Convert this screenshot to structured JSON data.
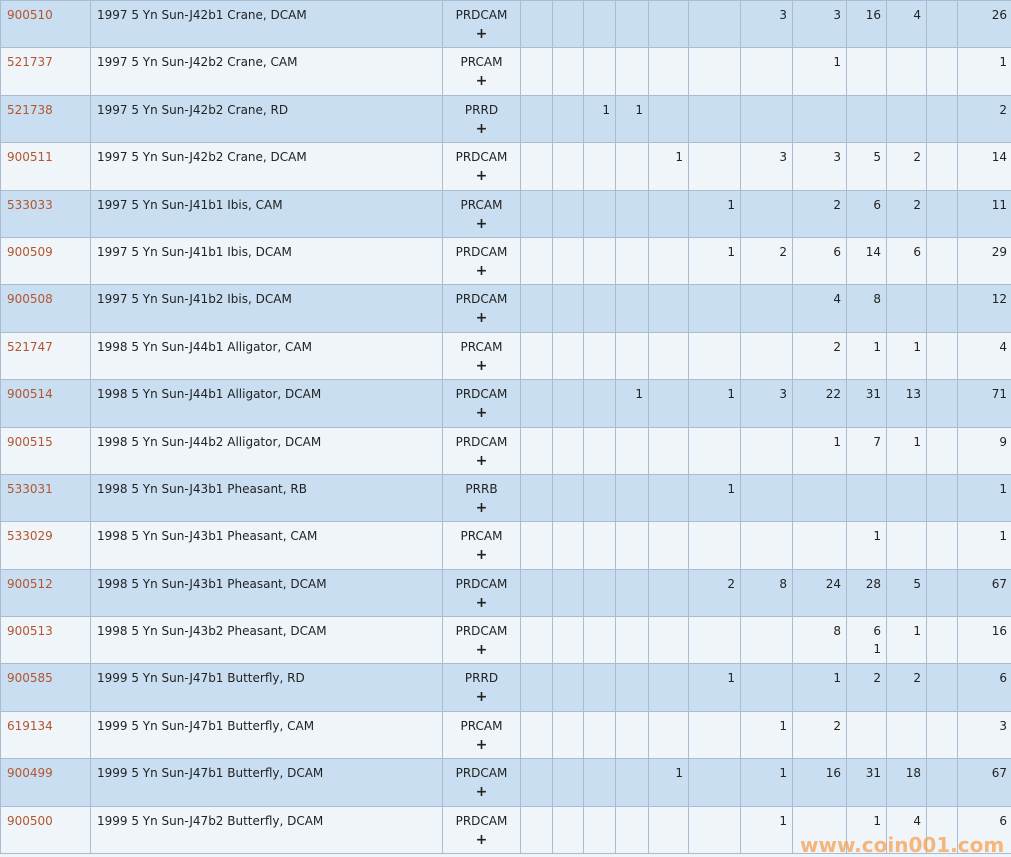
{
  "colors": {
    "row_odd": "#c9dff1",
    "row_even": "#f0f5fa",
    "link": "#b4552f",
    "border": "#aabdd0"
  },
  "plus_label": "+",
  "watermark": "www.coin001.com",
  "rows": [
    {
      "id": "900510",
      "desc": "1997 5 Yn Sun-J42b1 Crane, DCAM",
      "type": "PRDCAM",
      "cells": [
        "",
        "",
        "",
        "",
        "",
        "",
        "3",
        "3",
        "16",
        "4",
        "",
        "26"
      ]
    },
    {
      "id": "521737",
      "desc": "1997 5 Yn Sun-J42b2 Crane, CAM",
      "type": "PRCAM",
      "cells": [
        "",
        "",
        "",
        "",
        "",
        "",
        "",
        "1",
        "",
        "",
        "",
        "1"
      ]
    },
    {
      "id": "521738",
      "desc": "1997 5 Yn Sun-J42b2 Crane, RD",
      "type": "PRRD",
      "cells": [
        "",
        "",
        "1",
        "1",
        "",
        "",
        "",
        "",
        "",
        "",
        "",
        "2"
      ]
    },
    {
      "id": "900511",
      "desc": "1997 5 Yn Sun-J42b2 Crane, DCAM",
      "type": "PRDCAM",
      "cells": [
        "",
        "",
        "",
        "",
        "1",
        "",
        "3",
        "3",
        "5",
        "2",
        "",
        "14"
      ]
    },
    {
      "id": "533033",
      "desc": "1997 5 Yn Sun-J41b1 Ibis, CAM",
      "type": "PRCAM",
      "cells": [
        "",
        "",
        "",
        "",
        "",
        "1",
        "",
        "2",
        "6",
        "2",
        "",
        "11"
      ]
    },
    {
      "id": "900509",
      "desc": "1997 5 Yn Sun-J41b1 Ibis, DCAM",
      "type": "PRDCAM",
      "cells": [
        "",
        "",
        "",
        "",
        "",
        "1",
        "2",
        "6",
        "14",
        "6",
        "",
        "29"
      ]
    },
    {
      "id": "900508",
      "desc": "1997 5 Yn Sun-J41b2 Ibis, DCAM",
      "type": "PRDCAM",
      "cells": [
        "",
        "",
        "",
        "",
        "",
        "",
        "",
        "4",
        "8",
        "",
        "",
        "12"
      ]
    },
    {
      "id": "521747",
      "desc": "1998 5 Yn Sun-J44b1 Alligator, CAM",
      "type": "PRCAM",
      "cells": [
        "",
        "",
        "",
        "",
        "",
        "",
        "",
        "2",
        "1",
        "1",
        "",
        "4"
      ]
    },
    {
      "id": "900514",
      "desc": "1998 5 Yn Sun-J44b1 Alligator, DCAM",
      "type": "PRDCAM",
      "cells": [
        "",
        "",
        "",
        "1",
        "",
        "1",
        "3",
        "22",
        "31",
        "13",
        "",
        "71"
      ]
    },
    {
      "id": "900515",
      "desc": "1998 5 Yn Sun-J44b2 Alligator, DCAM",
      "type": "PRDCAM",
      "cells": [
        "",
        "",
        "",
        "",
        "",
        "",
        "",
        "1",
        "7",
        "1",
        "",
        "9"
      ]
    },
    {
      "id": "533031",
      "desc": "1998 5 Yn Sun-J43b1 Pheasant, RB",
      "type": "PRRB",
      "cells": [
        "",
        "",
        "",
        "",
        "",
        "1",
        "",
        "",
        "",
        "",
        "",
        "1"
      ]
    },
    {
      "id": "533029",
      "desc": "1998 5 Yn Sun-J43b1 Pheasant, CAM",
      "type": "PRCAM",
      "cells": [
        "",
        "",
        "",
        "",
        "",
        "",
        "",
        "",
        "1",
        "",
        "",
        "1"
      ]
    },
    {
      "id": "900512",
      "desc": "1998 5 Yn Sun-J43b1 Pheasant, DCAM",
      "type": "PRDCAM",
      "cells": [
        "",
        "",
        "",
        "",
        "",
        "2",
        "8",
        "24",
        "28",
        "5",
        "",
        "67"
      ]
    },
    {
      "id": "900513",
      "desc": "1998 5 Yn Sun-J43b2 Pheasant, DCAM",
      "type": "PRDCAM",
      "cells": [
        "",
        "",
        "",
        "",
        "",
        "",
        "",
        "8",
        "6\n1",
        "1",
        "",
        "16"
      ]
    },
    {
      "id": "900585",
      "desc": "1999 5 Yn Sun-J47b1 Butterfly, RD",
      "type": "PRRD",
      "cells": [
        "",
        "",
        "",
        "",
        "",
        "1",
        "",
        "1",
        "2",
        "2",
        "",
        "6"
      ]
    },
    {
      "id": "619134",
      "desc": "1999 5 Yn Sun-J47b1 Butterfly, CAM",
      "type": "PRCAM",
      "cells": [
        "",
        "",
        "",
        "",
        "",
        "",
        "1",
        "2",
        "",
        "",
        "",
        "3"
      ]
    },
    {
      "id": "900499",
      "desc": "1999 5 Yn Sun-J47b1 Butterfly, DCAM",
      "type": "PRDCAM",
      "cells": [
        "",
        "",
        "",
        "",
        "1",
        "",
        "1",
        "16",
        "31",
        "18",
        "",
        "67"
      ]
    },
    {
      "id": "900500",
      "desc": "1999 5 Yn Sun-J47b2 Butterfly, DCAM",
      "type": "PRDCAM",
      "cells": [
        "",
        "",
        "",
        "",
        "",
        "",
        "1",
        "",
        "1",
        "4",
        "",
        "6"
      ]
    }
  ]
}
